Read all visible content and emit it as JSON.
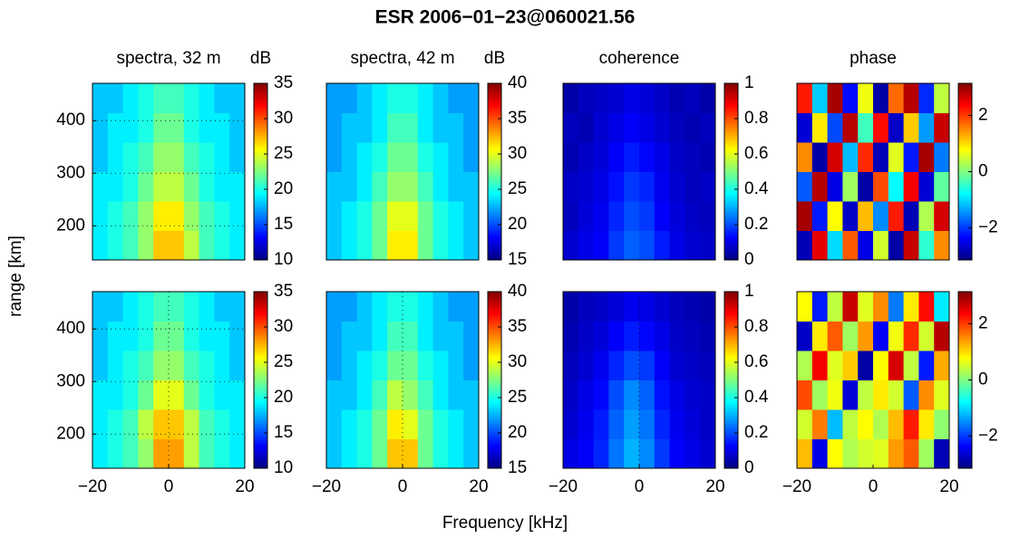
{
  "figure": {
    "title": "ESR 2006−01−23@060021.56",
    "xlabel": "Frequency [kHz]",
    "ylabel": "range [km]"
  },
  "chart_data": [
    {
      "type": "heatmap",
      "title": "spectra, 32 m",
      "colorbar_label": "dB",
      "colormap": "jet",
      "grid": true,
      "x": [
        -18,
        -14,
        -10,
        -6,
        -2,
        2,
        6,
        10,
        14,
        18
      ],
      "y": [
        163,
        219,
        275,
        331,
        387,
        443
      ],
      "z": [
        [
          19,
          20,
          21,
          23,
          27,
          27,
          24,
          21,
          20,
          19
        ],
        [
          19,
          20,
          21,
          23,
          26,
          26,
          23,
          21,
          20,
          19
        ],
        [
          19,
          19,
          20,
          22,
          24,
          24,
          22,
          20,
          19,
          19
        ],
        [
          18,
          19,
          20,
          21,
          23,
          23,
          21,
          20,
          19,
          18
        ],
        [
          18,
          19,
          19,
          20,
          22,
          22,
          20,
          19,
          19,
          18
        ],
        [
          18,
          18,
          19,
          20,
          21,
          21,
          20,
          19,
          18,
          18
        ]
      ],
      "xlim": [
        -20,
        20
      ],
      "ylim": [
        135,
        471
      ],
      "yticks": [
        200,
        300,
        400
      ],
      "clim": [
        10,
        35
      ],
      "cticks": [
        10,
        15,
        20,
        25,
        30,
        35
      ]
    },
    {
      "type": "heatmap",
      "title": "spectra, 42 m",
      "colorbar_label": "dB",
      "colormap": "jet",
      "grid": true,
      "x": [
        -18,
        -14,
        -10,
        -6,
        -2,
        2,
        6,
        10,
        14,
        18
      ],
      "y": [
        163,
        219,
        275,
        331,
        387,
        443
      ],
      "z": [
        [
          23,
          24,
          25,
          27,
          31,
          31,
          27,
          25,
          24,
          23
        ],
        [
          23,
          24,
          25,
          27,
          30,
          30,
          27,
          25,
          24,
          23
        ],
        [
          23,
          23,
          24,
          26,
          28,
          28,
          26,
          24,
          23,
          23
        ],
        [
          22,
          23,
          24,
          25,
          27,
          27,
          25,
          24,
          23,
          22
        ],
        [
          22,
          23,
          23,
          24,
          26,
          26,
          24,
          23,
          23,
          22
        ],
        [
          22,
          22,
          23,
          24,
          25,
          25,
          24,
          23,
          22,
          22
        ]
      ],
      "xlim": [
        -20,
        20
      ],
      "ylim": [
        135,
        471
      ],
      "clim": [
        15,
        40
      ],
      "cticks": [
        15,
        20,
        25,
        30,
        35,
        40
      ]
    },
    {
      "type": "heatmap",
      "title": "coherence",
      "colormap": "jet",
      "grid": true,
      "x": [
        -18,
        -14,
        -10,
        -6,
        -2,
        2,
        6,
        10,
        14,
        18
      ],
      "y": [
        163,
        219,
        275,
        331,
        387,
        443
      ],
      "z": [
        [
          0.08,
          0.1,
          0.12,
          0.18,
          0.22,
          0.2,
          0.15,
          0.1,
          0.08,
          0.07
        ],
        [
          0.06,
          0.09,
          0.11,
          0.16,
          0.2,
          0.18,
          0.12,
          0.09,
          0.07,
          0.06
        ],
        [
          0.07,
          0.08,
          0.1,
          0.14,
          0.18,
          0.16,
          0.11,
          0.08,
          0.06,
          0.07
        ],
        [
          0.05,
          0.07,
          0.09,
          0.12,
          0.15,
          0.13,
          0.1,
          0.07,
          0.06,
          0.05
        ],
        [
          0.06,
          0.05,
          0.08,
          0.1,
          0.12,
          0.1,
          0.08,
          0.06,
          0.05,
          0.06
        ],
        [
          0.04,
          0.06,
          0.07,
          0.08,
          0.1,
          0.09,
          0.07,
          0.05,
          0.06,
          0.04
        ]
      ],
      "xlim": [
        -20,
        20
      ],
      "ylim": [
        135,
        471
      ],
      "clim": [
        0,
        1
      ],
      "cticks": [
        0,
        0.2,
        0.4,
        0.6,
        0.8,
        1
      ]
    },
    {
      "type": "heatmap",
      "title": "phase",
      "colormap": "jet",
      "grid": false,
      "x": [
        -18,
        -14,
        -10,
        -6,
        -2,
        2,
        6,
        10,
        14,
        18
      ],
      "y": [
        163,
        219,
        275,
        331,
        387,
        443
      ],
      "z": [
        [
          -2.8,
          2.5,
          -1,
          1.8,
          -2.5,
          0.5,
          -2.9,
          2.7,
          -0.5,
          1.5
        ],
        [
          2.9,
          -2.2,
          0.8,
          -2.7,
          1.2,
          -1.5,
          2.2,
          -2.8,
          0.3,
          2.6
        ],
        [
          -1.8,
          2.8,
          -2.5,
          0.2,
          -2.9,
          1.9,
          -0.8,
          2.4,
          -2.6,
          -0.2
        ],
        [
          1.5,
          -2.9,
          2.6,
          -1.2,
          2.1,
          -2.8,
          0.6,
          -2.2,
          2.9,
          -1.6
        ],
        [
          -2.6,
          0.9,
          -1.9,
          2.8,
          -0.4,
          2.3,
          -2.7,
          1.1,
          -1.4,
          2.7
        ],
        [
          2.2,
          -1.1,
          2.9,
          -2.3,
          0.7,
          -2.9,
          1.7,
          2.8,
          -2.1,
          0.4
        ]
      ],
      "xlim": [
        -20,
        20
      ],
      "ylim": [
        135,
        471
      ],
      "clim": [
        -3.14,
        3.14
      ],
      "cticks": [
        {
          "value": -2,
          "label": "−2"
        },
        0,
        2
      ]
    },
    {
      "type": "heatmap",
      "colormap": "jet",
      "grid": true,
      "x": [
        -18,
        -14,
        -10,
        -6,
        -2,
        2,
        6,
        10,
        14,
        18
      ],
      "y": [
        163,
        219,
        275,
        331,
        387,
        443
      ],
      "z": [
        [
          19,
          20,
          21,
          23,
          28,
          28,
          24,
          21,
          20,
          19
        ],
        [
          19,
          20,
          21,
          24,
          27,
          27,
          24,
          21,
          20,
          19
        ],
        [
          19,
          19,
          20,
          22,
          25,
          25,
          22,
          20,
          19,
          19
        ],
        [
          18,
          19,
          20,
          21,
          23,
          23,
          21,
          20,
          19,
          18
        ],
        [
          18,
          19,
          19,
          20,
          22,
          22,
          20,
          19,
          19,
          18
        ],
        [
          18,
          18,
          19,
          20,
          21,
          21,
          20,
          19,
          18,
          18
        ]
      ],
      "xlim": [
        -20,
        20
      ],
      "ylim": [
        135,
        471
      ],
      "xticks": [
        {
          "value": -20,
          "label": "−20"
        },
        0,
        20
      ],
      "yticks": [
        200,
        300,
        400
      ],
      "clim": [
        10,
        35
      ],
      "cticks": [
        10,
        15,
        20,
        25,
        30,
        35
      ]
    },
    {
      "type": "heatmap",
      "colormap": "jet",
      "grid": true,
      "x": [
        -18,
        -14,
        -10,
        -6,
        -2,
        2,
        6,
        10,
        14,
        18
      ],
      "y": [
        163,
        219,
        275,
        331,
        387,
        443
      ],
      "z": [
        [
          23,
          24,
          25,
          27,
          32,
          32,
          27,
          25,
          24,
          23
        ],
        [
          23,
          24,
          25,
          27,
          31,
          30,
          27,
          25,
          24,
          23
        ],
        [
          23,
          23,
          24,
          26,
          29,
          28,
          26,
          24,
          23,
          23
        ],
        [
          22,
          23,
          24,
          25,
          27,
          27,
          25,
          24,
          23,
          22
        ],
        [
          22,
          23,
          23,
          24,
          26,
          26,
          24,
          23,
          23,
          22
        ],
        [
          22,
          22,
          23,
          24,
          25,
          25,
          24,
          23,
          22,
          22
        ]
      ],
      "xlim": [
        -20,
        20
      ],
      "ylim": [
        135,
        471
      ],
      "xticks": [
        {
          "value": -20,
          "label": "−20"
        },
        0,
        20
      ],
      "clim": [
        15,
        40
      ],
      "cticks": [
        15,
        20,
        25,
        30,
        35,
        40
      ]
    },
    {
      "type": "heatmap",
      "colormap": "jet",
      "grid": true,
      "x": [
        -18,
        -14,
        -10,
        -6,
        -2,
        2,
        6,
        10,
        14,
        18
      ],
      "y": [
        163,
        219,
        275,
        331,
        387,
        443
      ],
      "z": [
        [
          0.1,
          0.12,
          0.16,
          0.24,
          0.3,
          0.26,
          0.18,
          0.12,
          0.1,
          0.08
        ],
        [
          0.08,
          0.11,
          0.15,
          0.22,
          0.28,
          0.24,
          0.16,
          0.11,
          0.09,
          0.07
        ],
        [
          0.07,
          0.1,
          0.13,
          0.2,
          0.26,
          0.22,
          0.14,
          0.1,
          0.08,
          0.07
        ],
        [
          0.06,
          0.08,
          0.11,
          0.16,
          0.2,
          0.18,
          0.12,
          0.08,
          0.07,
          0.06
        ],
        [
          0.05,
          0.07,
          0.09,
          0.12,
          0.15,
          0.13,
          0.1,
          0.07,
          0.06,
          0.05
        ],
        [
          0.04,
          0.06,
          0.07,
          0.09,
          0.11,
          0.1,
          0.08,
          0.06,
          0.05,
          0.04
        ]
      ],
      "xlim": [
        -20,
        20
      ],
      "ylim": [
        135,
        471
      ],
      "xticks": [
        {
          "value": -20,
          "label": "−20"
        },
        0,
        20
      ],
      "clim": [
        0,
        1
      ],
      "cticks": [
        0,
        0.2,
        0.4,
        0.6,
        0.8,
        1
      ]
    },
    {
      "type": "heatmap",
      "colormap": "jet",
      "grid": false,
      "x": [
        -18,
        -14,
        -10,
        -6,
        -2,
        2,
        6,
        10,
        14,
        18
      ],
      "y": [
        163,
        219,
        275,
        331,
        387,
        443
      ],
      "z": [
        [
          1.2,
          -2.5,
          0.8,
          0.3,
          0.5,
          0.6,
          1.4,
          1.8,
          0.2,
          -2.8
        ],
        [
          0.5,
          1.6,
          -1.2,
          0.4,
          0.8,
          0.3,
          1.2,
          2.2,
          0.9,
          0.1
        ],
        [
          1.9,
          0.2,
          0.7,
          -2.6,
          0.4,
          0.9,
          0.5,
          -1.8,
          1.5,
          0.6
        ],
        [
          0.3,
          2.4,
          0.6,
          1.1,
          -2.9,
          0.8,
          2.6,
          0.4,
          -2.2,
          1.3
        ],
        [
          -2.7,
          0.9,
          1.8,
          0.2,
          1.4,
          -2.4,
          0.7,
          2.1,
          0.5,
          2.8
        ],
        [
          0.8,
          -2.2,
          0.4,
          2.7,
          0.6,
          1.5,
          -1.6,
          0.9,
          2.3,
          -0.9
        ]
      ],
      "xlim": [
        -20,
        20
      ],
      "ylim": [
        135,
        471
      ],
      "xticks": [
        {
          "value": -20,
          "label": "−20"
        },
        0,
        20
      ],
      "clim": [
        -3.14,
        3.14
      ],
      "cticks": [
        {
          "value": -2,
          "label": "−2"
        },
        0,
        2
      ]
    }
  ]
}
